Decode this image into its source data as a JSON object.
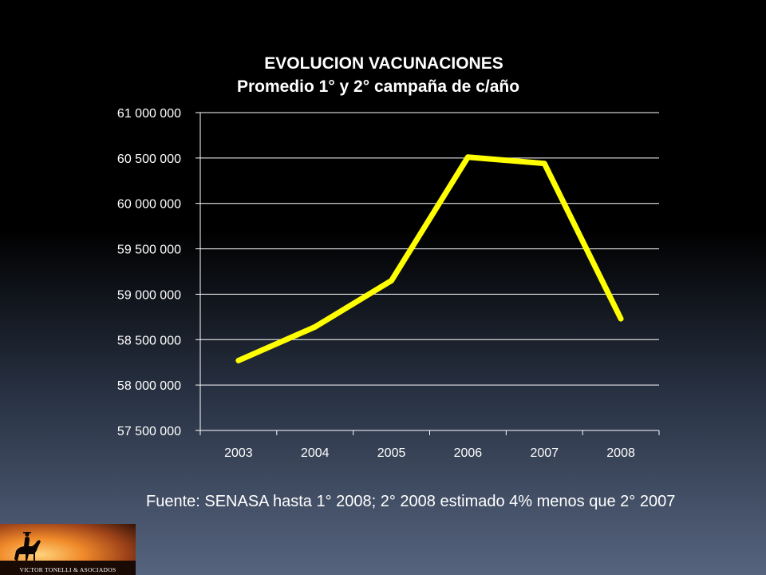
{
  "chart_data": {
    "type": "line",
    "title": "EVOLUCION VACUNACIONES",
    "subtitle": "Promedio 1° y 2° campaña de c/año",
    "categories": [
      "2003",
      "2004",
      "2005",
      "2006",
      "2007",
      "2008"
    ],
    "series": [
      {
        "values": [
          58270000,
          58640000,
          59150000,
          60510000,
          60440000,
          58730000
        ]
      }
    ],
    "ylim": [
      57500000,
      61000000
    ],
    "y_ticks": [
      57500000,
      58000000,
      58500000,
      59000000,
      59500000,
      60000000,
      60500000,
      61000000
    ],
    "y_tick_labels": [
      "57 500 000",
      "58 000 000",
      "58 500 000",
      "59 000 000",
      "59 500 000",
      "60 000 000",
      "60 500 000",
      "61 000 000"
    ],
    "grid": true,
    "line_color": "#ffff00",
    "text_color": "#ffffff",
    "grid_color": "#ffffff"
  },
  "footnote": "Fuente: SENASA hasta 1° 2008; 2° 2008 estimado 4% menos que 2° 2007",
  "logo": {
    "text": "VICTOR TONELLI & ASOCIADOS",
    "icon": "horse-rider-icon"
  }
}
